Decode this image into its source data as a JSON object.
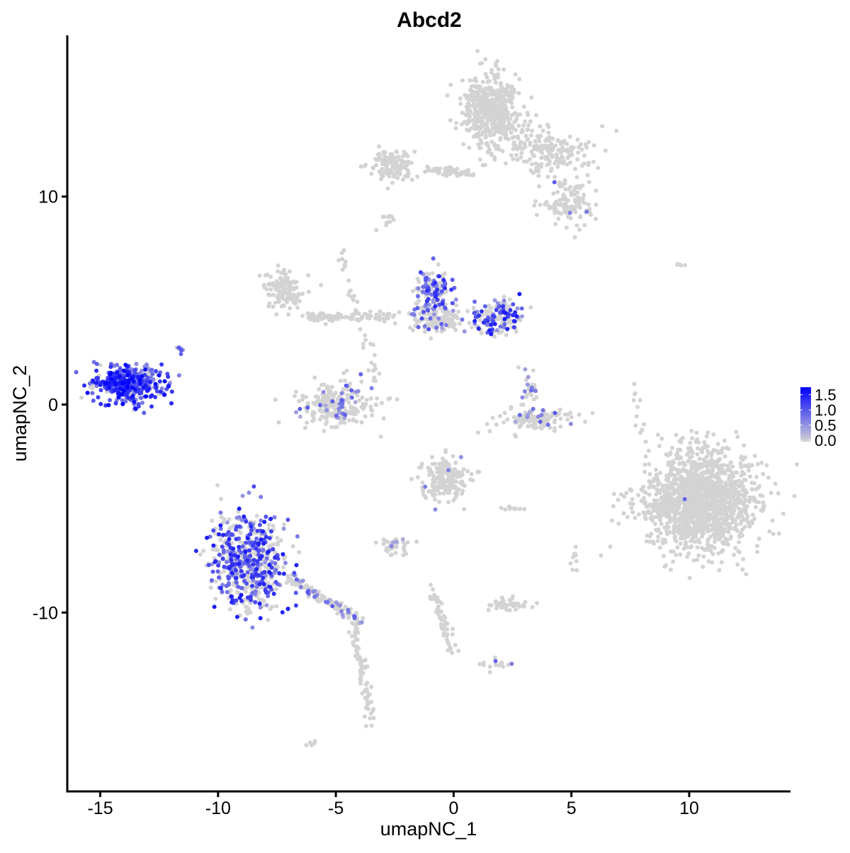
{
  "chart_data": {
    "type": "scatter",
    "title": "Abcd2",
    "xlabel": "umapNC_1",
    "ylabel": "umapNC_2",
    "xlim": [
      -16.4,
      14.3
    ],
    "ylim": [
      -18.6,
      17.75
    ],
    "xticks": [
      -15,
      -10,
      -5,
      0,
      5,
      10
    ],
    "yticks": [
      -10,
      0,
      10
    ],
    "grid": false,
    "colorscale": {
      "low": "#D3D3D3",
      "high": "#0000FF",
      "min": 0,
      "max": 1.7
    },
    "legend": {
      "placement": "right",
      "ticks": [
        "1.5",
        "1.0",
        "0.5",
        "0.0"
      ],
      "tick_values": [
        1.5,
        1.0,
        0.5,
        0.0
      ]
    },
    "clusters": [
      {
        "center": [
          1.6,
          14.2
        ],
        "sd": [
          0.6,
          0.8
        ],
        "n": 500,
        "expr_frac": 0.0
      },
      {
        "center": [
          3.8,
          12.2
        ],
        "sd": [
          1.0,
          0.6
        ],
        "n": 200,
        "expr_frac": 0.0
      },
      {
        "center": [
          5.0,
          9.7
        ],
        "sd": [
          0.6,
          0.6
        ],
        "n": 120,
        "expr_frac": 0.01
      },
      {
        "center": [
          -2.6,
          11.5
        ],
        "sd": [
          0.5,
          0.4
        ],
        "n": 120,
        "expr_frac": 0.0
      },
      {
        "line": [
          [
            -1.2,
            11.3
          ],
          [
            0.8,
            11.1
          ]
        ],
        "n": 60,
        "expr_frac": 0.0
      },
      {
        "center": [
          -2.8,
          8.8
        ],
        "sd": [
          0.15,
          0.2
        ],
        "n": 10,
        "expr_frac": 0.0
      },
      {
        "center": [
          -7.2,
          5.5
        ],
        "sd": [
          0.4,
          0.5
        ],
        "n": 120,
        "expr_frac": 0.0
      },
      {
        "line": [
          [
            -6.3,
            4.2
          ],
          [
            -2.4,
            4.3
          ]
        ],
        "n": 100,
        "expr_frac": 0.0
      },
      {
        "line": [
          [
            -4.8,
            7.5
          ],
          [
            -3.2,
            1.0
          ]
        ],
        "n": 40,
        "expr_frac": 0.0
      },
      {
        "center": [
          -0.9,
          5.3
        ],
        "sd": [
          0.4,
          0.6
        ],
        "n": 150,
        "expr_frac": 0.5,
        "expr_max": 1.4
      },
      {
        "center": [
          1.9,
          4.2
        ],
        "sd": [
          0.5,
          0.4
        ],
        "n": 150,
        "expr_frac": 0.5,
        "expr_max": 1.5
      },
      {
        "center": [
          -0.6,
          4.0
        ],
        "sd": [
          0.6,
          0.3
        ],
        "n": 120,
        "expr_frac": 0.1,
        "expr_max": 1.0
      },
      {
        "center": [
          -5.0,
          0.0
        ],
        "sd": [
          0.8,
          0.5
        ],
        "n": 250,
        "expr_frac": 0.15,
        "expr_max": 1.0
      },
      {
        "center": [
          -13.8,
          1.0
        ],
        "sd": [
          0.75,
          0.45
        ],
        "n": 400,
        "expr_frac": 0.85,
        "expr_max": 1.7
      },
      {
        "center": [
          -11.6,
          2.7
        ],
        "sd": [
          0.1,
          0.1
        ],
        "n": 8,
        "expr_frac": 0.8,
        "expr_max": 1.2
      },
      {
        "center": [
          3.5,
          -0.7
        ],
        "sd": [
          0.8,
          0.25
        ],
        "n": 120,
        "expr_frac": 0.08,
        "expr_max": 1.0
      },
      {
        "center": [
          3.2,
          0.8
        ],
        "sd": [
          0.2,
          0.5
        ],
        "n": 30,
        "expr_frac": 0.2,
        "expr_max": 1.0
      },
      {
        "center": [
          10.5,
          -4.6
        ],
        "sd": [
          1.2,
          1.2
        ],
        "n": 1500,
        "expr_frac": 0.001,
        "expr_max": 1.0
      },
      {
        "center": [
          -0.4,
          -3.6
        ],
        "sd": [
          0.5,
          0.5
        ],
        "n": 200,
        "expr_frac": 0.02,
        "expr_max": 1.0
      },
      {
        "center": [
          -8.7,
          -7.6
        ],
        "sd": [
          0.8,
          1.2
        ],
        "n": 600,
        "expr_frac": 0.5,
        "expr_max": 1.5
      },
      {
        "line": [
          [
            -7.0,
            -8.3
          ],
          [
            -4.0,
            -10.4
          ]
        ],
        "n": 120,
        "expr_frac": 0.2,
        "expr_max": 1.0
      },
      {
        "line": [
          [
            -4.2,
            -10.6
          ],
          [
            -3.5,
            -15.2
          ]
        ],
        "n": 80,
        "expr_frac": 0.0
      },
      {
        "center": [
          -2.5,
          -6.8
        ],
        "sd": [
          0.4,
          0.2
        ],
        "n": 40,
        "expr_frac": 0.05,
        "expr_max": 1.0
      },
      {
        "center": [
          2.3,
          -9.6
        ],
        "sd": [
          0.5,
          0.15
        ],
        "n": 50,
        "expr_frac": 0.0
      },
      {
        "line": [
          [
            -0.9,
            -9.0
          ],
          [
            0.0,
            -12.0
          ]
        ],
        "n": 50,
        "expr_frac": 0.0
      },
      {
        "center": [
          1.8,
          -12.5
        ],
        "sd": [
          0.3,
          0.15
        ],
        "n": 15,
        "expr_frac": 0.3,
        "expr_max": 1.0
      },
      {
        "line": [
          [
            7.8,
            0.8
          ],
          [
            8.0,
            -1.8
          ]
        ],
        "n": 12,
        "expr_frac": 0.1,
        "expr_max": 1.0
      },
      {
        "center": [
          9.5,
          6.7
        ],
        "sd": [
          0.2,
          0.05
        ],
        "n": 5,
        "expr_frac": 0.0
      },
      {
        "center": [
          -6.0,
          -16.3
        ],
        "sd": [
          0.1,
          0.1
        ],
        "n": 5,
        "expr_frac": 0.0
      },
      {
        "center": [
          2.4,
          -5.0
        ],
        "sd": [
          0.4,
          0.05
        ],
        "n": 10,
        "expr_frac": 0.0
      },
      {
        "line": [
          [
            5.0,
            -7.0
          ],
          [
            5.1,
            -8.0
          ]
        ],
        "n": 10,
        "expr_frac": 0.0
      }
    ]
  }
}
